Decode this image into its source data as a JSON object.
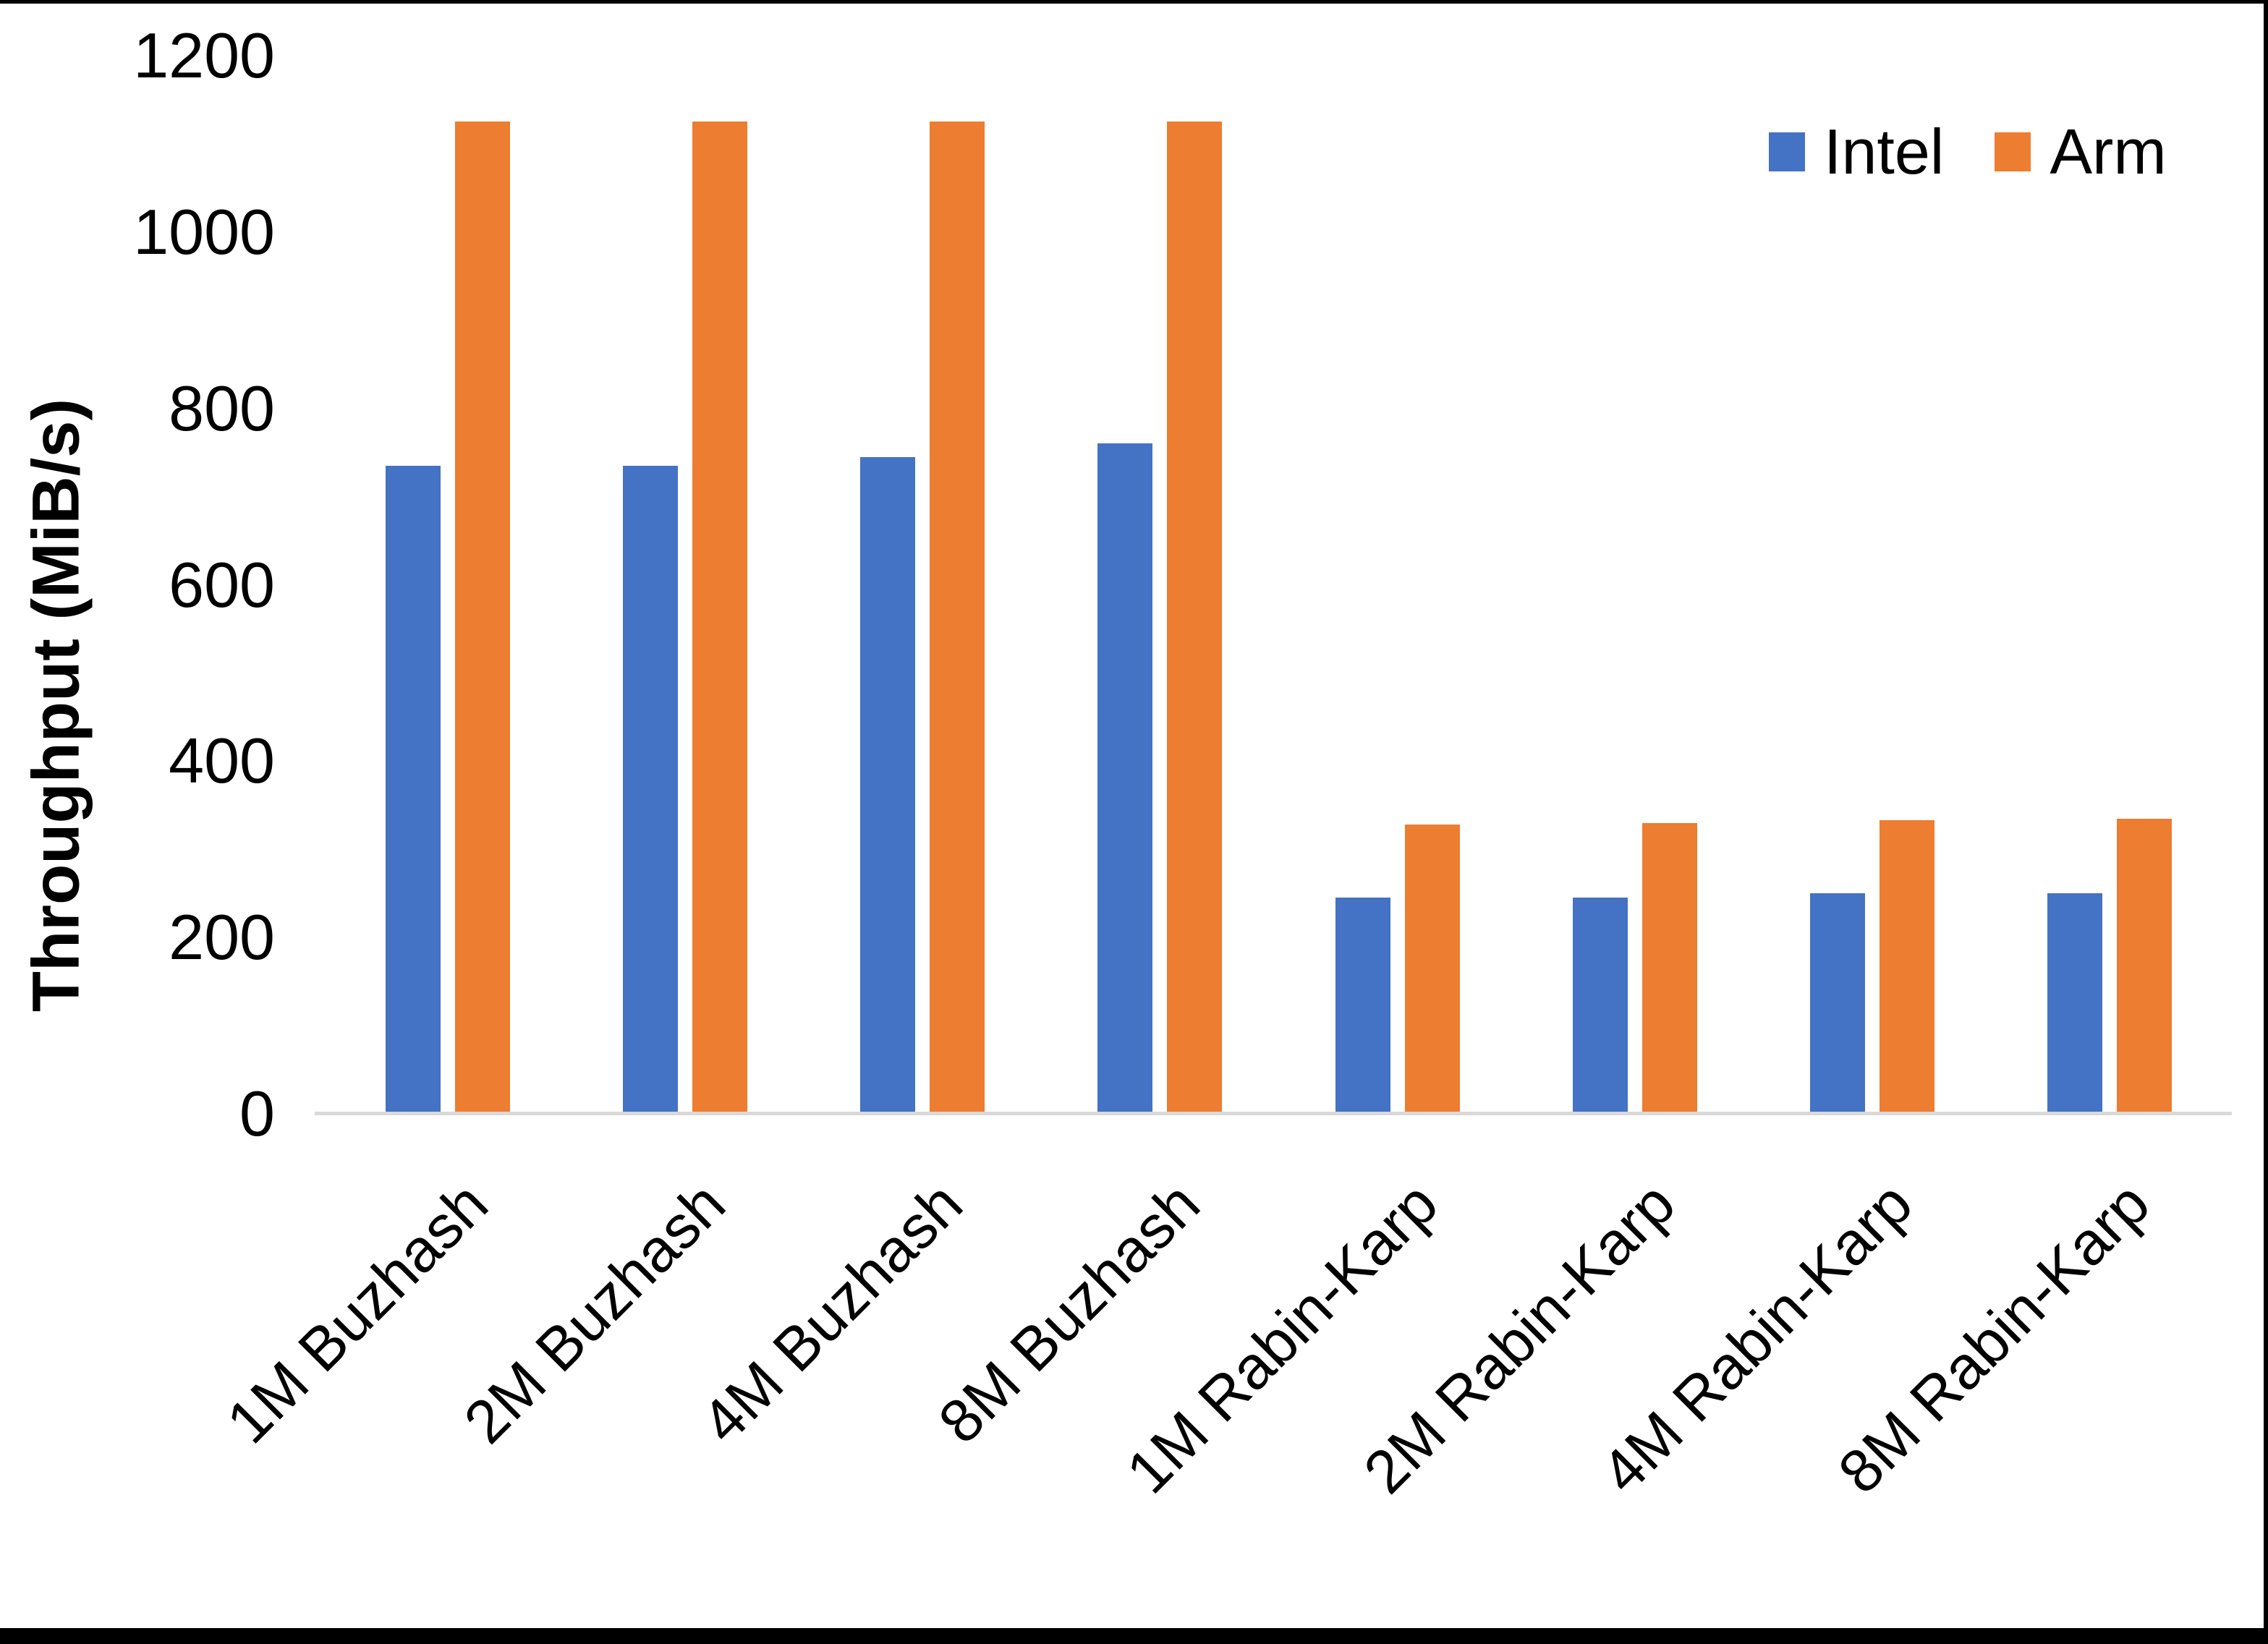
{
  "chart_data": {
    "type": "bar",
    "title": "",
    "categories": [
      "1M Buzhash",
      "2M Buzhash",
      "4M Buzhash",
      "8M Buzhash",
      "1M Rabin-Karp",
      "2M Rabin-Karp",
      "4M Rabin-Karp",
      "8M Rabin-Karp"
    ],
    "series": [
      {
        "name": "Intel",
        "color": "#4472C4",
        "values": [
          735,
          735,
          745,
          760,
          245,
          245,
          250,
          250
        ]
      },
      {
        "name": "Arm",
        "color": "#ED7D31",
        "values": [
          1125,
          1125,
          1125,
          1125,
          328,
          330,
          333,
          335
        ]
      }
    ],
    "xlabel": "",
    "ylabel": "Throughput (MiB/s)",
    "ylim": [
      0,
      1200
    ],
    "yticks": [
      0,
      200,
      400,
      600,
      800,
      1000,
      1200
    ],
    "grid": false,
    "legend_position": "top-right",
    "bar_label_rotation_deg": 45
  },
  "legend": {
    "items": [
      {
        "label": "Intel",
        "color": "#4472C4"
      },
      {
        "label": "Arm",
        "color": "#ED7D31"
      }
    ]
  },
  "axis": {
    "y_title": "Throughput (MiB/s)"
  },
  "colors": {
    "background": "#FFFFFF",
    "axis_line": "#D9D9D9",
    "text": "#000000",
    "frame": "#000000"
  }
}
